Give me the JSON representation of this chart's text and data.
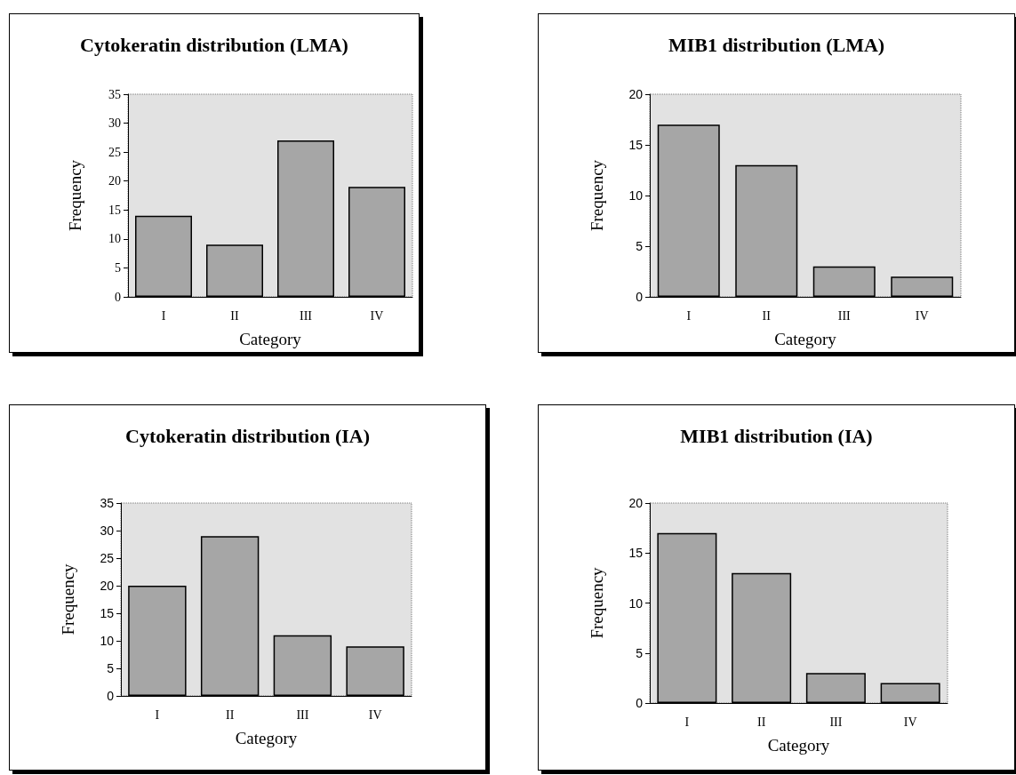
{
  "chart_data": [
    {
      "type": "bar",
      "title": "Cytokeratin distribution (LMA)",
      "xlabel": "Category",
      "ylabel": "Frequency",
      "categories": [
        "I",
        "II",
        "III",
        "IV"
      ],
      "series": [
        {
          "color": "#a6a6a6",
          "values": [
            14,
            9,
            27,
            19
          ]
        }
      ],
      "ylim": [
        0,
        35
      ],
      "yticks": [
        0,
        5,
        10,
        15,
        20,
        25,
        30,
        35
      ],
      "grid": false
    },
    {
      "type": "bar",
      "title": "MIB1 distribution (LMA)",
      "xlabel": "Category",
      "ylabel": "Frequency",
      "categories": [
        "I",
        "II",
        "III",
        "IV"
      ],
      "series": [
        {
          "color": "#a6a6a6",
          "values": [
            17,
            13,
            3,
            2
          ]
        }
      ],
      "ylim": [
        0,
        20
      ],
      "yticks": [
        0,
        5,
        10,
        15,
        20
      ],
      "grid": false
    },
    {
      "type": "bar",
      "title": "Cytokeratin distribution (IA)",
      "xlabel": "Category",
      "ylabel": "Frequency",
      "categories": [
        "I",
        "II",
        "III",
        "IV"
      ],
      "series": [
        {
          "color": "#a6a6a6",
          "values": [
            20,
            29,
            11,
            9
          ]
        }
      ],
      "ylim": [
        0,
        35
      ],
      "yticks": [
        0,
        5,
        10,
        15,
        20,
        25,
        30,
        35
      ],
      "grid": false
    },
    {
      "type": "bar",
      "title": "MIB1 distribution (IA)",
      "xlabel": "Category",
      "ylabel": "Frequency",
      "categories": [
        "I",
        "II",
        "III",
        "IV"
      ],
      "series": [
        {
          "color": "#a6a6a6",
          "values": [
            17,
            13,
            3,
            2
          ]
        }
      ],
      "ylim": [
        0,
        20
      ],
      "yticks": [
        0,
        5,
        10,
        15,
        20
      ],
      "grid": false
    }
  ]
}
